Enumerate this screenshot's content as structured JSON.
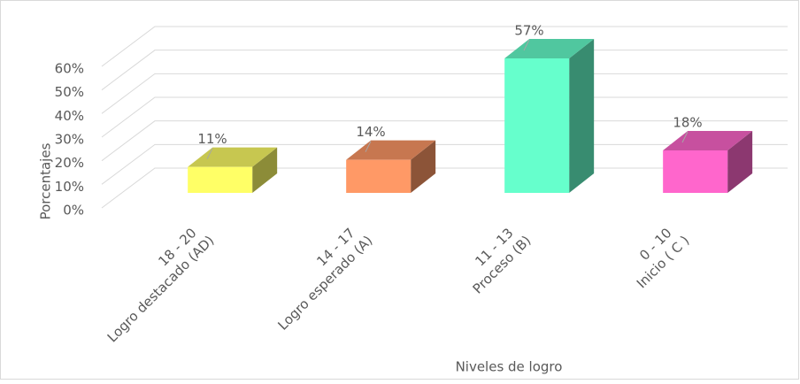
{
  "chart_data": {
    "type": "bar3d",
    "categories": [
      [
        "18 - 20",
        "Logro destacado (AD)"
      ],
      [
        "14 - 17",
        "Logro esperado (A)"
      ],
      [
        "11 - 13",
        "Proceso (B)"
      ],
      [
        "0 - 10",
        "Inicio ( C )"
      ]
    ],
    "values": [
      11,
      14,
      57,
      18
    ],
    "value_labels": [
      "11%",
      "14%",
      "57%",
      "18%"
    ],
    "colors": [
      "#ffff66",
      "#ff9966",
      "#66ffcc",
      "#ff66cc"
    ],
    "ylim": [
      0,
      60
    ],
    "yticks": [
      {
        "value": 0,
        "label": "0%"
      },
      {
        "value": 10,
        "label": "10%"
      },
      {
        "value": 20,
        "label": "20%"
      },
      {
        "value": 30,
        "label": "30%"
      },
      {
        "value": 40,
        "label": "40%"
      },
      {
        "value": 50,
        "label": "50%"
      },
      {
        "value": 60,
        "label": "60%"
      }
    ],
    "y_label": "Porcentajes",
    "x_label": "Niveles de logro",
    "grid": true
  }
}
